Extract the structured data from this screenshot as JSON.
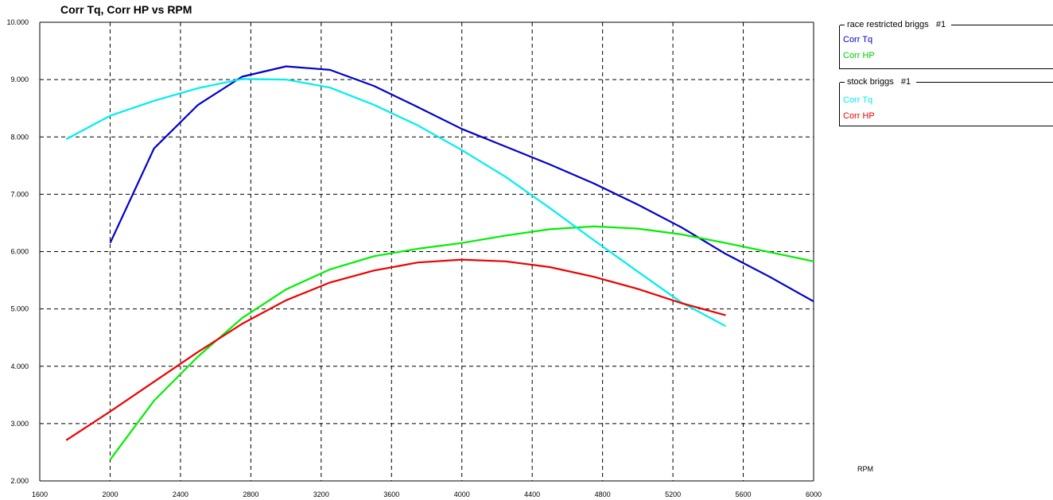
{
  "chart_data": {
    "type": "line",
    "title": "Corr Tq, Corr HP vs RPM",
    "xlabel": "RPM",
    "ylabel": "",
    "xlim": [
      1600,
      6000
    ],
    "ylim": [
      2.0,
      10.0
    ],
    "xticks": [
      1600,
      2000,
      2400,
      2800,
      3200,
      3600,
      4000,
      4400,
      4800,
      5200,
      5600,
      6000
    ],
    "yticks": [
      "2.000",
      "3.000",
      "4.000",
      "5.000",
      "6.000",
      "7.000",
      "8.000",
      "9.000",
      "10.000"
    ],
    "grid": true,
    "groups": [
      {
        "name": "race restricted briggs",
        "run": "#1",
        "series": [
          {
            "name": "Corr Tq",
            "color": "#0000cc",
            "x": [
              2000,
              2250,
              2500,
              2750,
              3000,
              3250,
              3500,
              3750,
              4000,
              4250,
              4500,
              4750,
              5000,
              5250,
              5500,
              5750,
              6000
            ],
            "y": [
              6.15,
              7.8,
              8.56,
              9.05,
              9.23,
              9.17,
              8.89,
              8.52,
              8.14,
              7.83,
              7.52,
              7.19,
              6.82,
              6.42,
              5.96,
              5.56,
              5.13
            ]
          },
          {
            "name": "Corr HP",
            "color": "#00ee00",
            "x": [
              2000,
              2250,
              2500,
              2750,
              3000,
              3250,
              3500,
              3750,
              4000,
              4250,
              4500,
              4750,
              5000,
              5250,
              5500,
              5750,
              6000
            ],
            "y": [
              2.37,
              3.4,
              4.17,
              4.84,
              5.34,
              5.69,
              5.92,
              6.05,
              6.15,
              6.28,
              6.39,
              6.44,
              6.4,
              6.3,
              6.15,
              5.99,
              5.83
            ]
          }
        ]
      },
      {
        "name": "stock briggs",
        "run": "#1",
        "series": [
          {
            "name": "Corr Tq",
            "color": "#00eeee",
            "x": [
              1750,
              2000,
              2250,
              2500,
              2750,
              3000,
              3250,
              3500,
              3750,
              4000,
              4250,
              4500,
              4750,
              5000,
              5250,
              5500
            ],
            "y": [
              7.96,
              8.37,
              8.63,
              8.85,
              9.01,
              9.0,
              8.86,
              8.56,
              8.2,
              7.77,
              7.3,
              6.76,
              6.2,
              5.65,
              5.11,
              4.7
            ]
          },
          {
            "name": "Corr HP",
            "color": "#ee0000",
            "x": [
              1750,
              2000,
              2250,
              2500,
              2750,
              3000,
              3250,
              3500,
              3750,
              4000,
              4250,
              4500,
              4750,
              5000,
              5250,
              5500
            ],
            "y": [
              2.71,
              3.21,
              3.73,
              4.25,
              4.74,
              5.15,
              5.46,
              5.67,
              5.81,
              5.86,
              5.83,
              5.73,
              5.56,
              5.35,
              5.1,
              4.89
            ]
          }
        ]
      }
    ]
  }
}
